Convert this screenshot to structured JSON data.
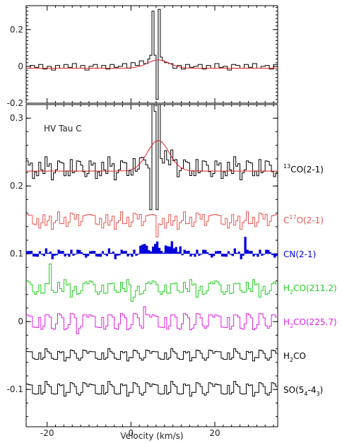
{
  "chart_data": [
    {
      "type": "line",
      "panel": "top",
      "xlim": [
        -25,
        35
      ],
      "ylim": [
        -0.2,
        0.33
      ],
      "yticks": [
        {
          "value": 0.2,
          "label": "0.2"
        },
        {
          "value": 0,
          "label": "0"
        },
        {
          "value": -0.2,
          "label": "-0.2"
        }
      ],
      "series": [
        {
          "key": "top_obs",
          "color": "#000000",
          "style": "step",
          "x": [
            -25,
            -24,
            -23,
            -22,
            -21,
            -20,
            -19,
            -18,
            -17,
            -16,
            -15,
            -14,
            -13,
            -12,
            -11,
            -10,
            -9,
            -8,
            -7,
            -6,
            -5,
            -4,
            -3,
            -2,
            -1,
            0,
            1,
            2,
            3,
            4,
            4.5,
            5,
            5.5,
            6,
            6.5,
            7,
            7.5,
            8,
            9,
            10,
            11,
            12,
            13,
            14,
            15,
            16,
            17,
            18,
            19,
            20,
            21,
            22,
            23,
            24,
            25,
            26,
            27,
            28,
            29,
            30,
            31,
            32,
            33,
            34,
            35
          ],
          "y": [
            -0.01,
            0.005,
            -0.005,
            0.01,
            -0.015,
            0.0,
            -0.02,
            0.005,
            -0.01,
            0.01,
            -0.005,
            0.015,
            -0.01,
            0.005,
            -0.02,
            0.0,
            0.01,
            -0.01,
            0.005,
            -0.015,
            0.01,
            -0.005,
            0.0,
            0.015,
            -0.01,
            0.02,
            0.005,
            0.03,
            0.015,
            0.04,
            0.06,
            0.3,
            0.06,
            -0.18,
            0.31,
            0.05,
            0.03,
            0.02,
            0.015,
            -0.01,
            0.005,
            -0.015,
            0.01,
            -0.005,
            0.0,
            0.01,
            -0.015,
            0.005,
            -0.01,
            0.015,
            -0.005,
            0.0,
            -0.02,
            0.01,
            0.005,
            -0.01,
            0.01,
            -0.005,
            0.015,
            -0.01,
            0.0,
            0.005,
            -0.015,
            0.01,
            -0.005
          ]
        },
        {
          "key": "top_fit",
          "color": "#e02020",
          "style": "gauss",
          "amp": 0.045,
          "center": 6.5,
          "sigma": 2.6,
          "offset": -0.01
        }
      ]
    },
    {
      "type": "line",
      "panel": "bottom",
      "xlim": [
        -25,
        35
      ],
      "ylim": [
        -0.155,
        0.32
      ],
      "xticks": [
        {
          "value": -20,
          "label": "-20"
        },
        {
          "value": 0,
          "label": "0"
        },
        {
          "value": 20,
          "label": "20"
        }
      ],
      "yticks": [
        {
          "value": 0.3,
          "label": "0.3"
        },
        {
          "value": 0.2,
          "label": "0.2"
        },
        {
          "value": 0.1,
          "label": "0.1"
        },
        {
          "value": 0,
          "label": "0"
        },
        {
          "value": -0.1,
          "label": "-0.1"
        }
      ],
      "xlabel": "Velocity (km/s)",
      "annotation": "HV Tau C",
      "series": [
        {
          "name": "13CO(2-1)",
          "key": "co13",
          "color": "#000000",
          "style": "step",
          "offset": 0.225,
          "special": "co13",
          "amps": [
            0.012,
            -0.008,
            0.016,
            -0.014,
            0.006,
            -0.018,
            0.01,
            0.002,
            -0.012,
            0.018,
            -0.006,
            0.014,
            -0.016,
            0.008,
            -0.002,
            0.012,
            -0.014,
            0.016,
            -0.01,
            0.004,
            -0.018,
            0.014,
            0.008,
            -0.006,
            0.012,
            -0.016,
            0.01,
            -0.004,
            0.016,
            -0.012
          ]
        },
        {
          "name": "C17O(2-1)",
          "key": "c17o",
          "color": "#e8554f",
          "style": "step",
          "offset": 0.15,
          "special": "c17o",
          "amps": [
            0.008,
            -0.01,
            0.012,
            -0.006,
            0.01,
            0.004,
            -0.012,
            0.006,
            0.014,
            -0.008,
            0.002,
            0.01,
            -0.014,
            0.006,
            -0.002,
            0.012,
            0.008,
            -0.01,
            0.004,
            0.014,
            -0.006,
            0.01,
            -0.012,
            0.002,
            0.008,
            0.012,
            -0.004,
            0.006,
            -0.01,
            0.014
          ]
        },
        {
          "name": "CN(2-1)",
          "key": "cn",
          "color": "#0000dd",
          "style": "filled",
          "offset": 0.1,
          "special": "cn",
          "amps": [
            0.004,
            -0.006,
            0.008,
            -0.004,
            0.006,
            -0.008,
            0.004,
            0.002,
            -0.006,
            0.008,
            -0.002,
            0.006,
            -0.008,
            0.004,
            -0.004,
            0.006,
            -0.006,
            0.008,
            -0.004,
            0.002,
            -0.008,
            0.006,
            0.004,
            -0.002,
            0.006,
            -0.008,
            0.004,
            -0.002,
            0.008,
            -0.006
          ]
        },
        {
          "name": "H2CO(211.2)",
          "key": "h2co211",
          "color": "#22cc22",
          "style": "step",
          "offset": 0.05,
          "special": "h2co211",
          "amps": [
            0.01,
            -0.012,
            0.008,
            -0.006,
            0.014,
            -0.01,
            0.004,
            0.012,
            -0.014,
            0.006,
            -0.008,
            0.012,
            -0.004,
            0.01,
            -0.012,
            0.008,
            0.002,
            -0.01,
            0.012,
            -0.006,
            0.01,
            -0.014,
            0.006,
            0.004,
            -0.01,
            0.012,
            -0.008,
            0.006,
            -0.012,
            0.01
          ]
        },
        {
          "name": "H2CO(225.7)",
          "key": "h2co225",
          "color": "#e01ee0",
          "style": "step",
          "offset": 0.0,
          "special": "h2co225",
          "amps": [
            0.01,
            -0.012,
            0.014,
            -0.008,
            0.012,
            -0.016,
            0.006,
            0.016,
            -0.012,
            0.01,
            -0.014,
            0.012,
            -0.01,
            0.016,
            -0.006,
            0.012,
            -0.014,
            0.01,
            -0.012,
            0.014,
            -0.008,
            0.012,
            -0.016,
            0.01,
            -0.006,
            0.014,
            -0.012,
            0.01,
            -0.014,
            0.012
          ]
        },
        {
          "name": "H2CO",
          "key": "h2co",
          "color": "#000000",
          "style": "step",
          "offset": -0.05,
          "special": "none",
          "amps": [
            0.006,
            -0.008,
            0.01,
            -0.004,
            0.008,
            -0.01,
            0.004,
            0.008,
            -0.006,
            0.01,
            -0.008,
            0.006,
            -0.004,
            0.008,
            -0.01,
            0.006,
            -0.006,
            0.01,
            -0.008,
            0.004,
            -0.006,
            0.008,
            -0.01,
            0.006,
            -0.004,
            0.01,
            -0.006,
            0.008,
            -0.01,
            0.006
          ]
        },
        {
          "name": "SO(54-43)",
          "key": "so",
          "color": "#000000",
          "style": "step",
          "offset": -0.1,
          "special": "none",
          "amps": [
            0.008,
            -0.01,
            0.012,
            -0.006,
            0.01,
            -0.012,
            0.006,
            0.01,
            -0.008,
            0.012,
            -0.01,
            0.008,
            -0.006,
            0.01,
            -0.012,
            0.008,
            -0.008,
            0.012,
            -0.01,
            0.006,
            -0.008,
            0.01,
            -0.012,
            0.008,
            -0.006,
            0.012,
            -0.008,
            0.01,
            -0.012,
            0.008
          ]
        },
        {
          "name": "13CO fit",
          "key": "co13_fit",
          "color": "#e02020",
          "style": "gauss",
          "amp": 0.045,
          "center": 6.5,
          "sigma": 2.6,
          "offset": 0.222
        }
      ]
    }
  ],
  "labels": {
    "annotation": "HV Tau C",
    "xlabel": "Velocity (km/s)",
    "lines": [
      {
        "key": "co13",
        "sup": "13",
        "pre": "",
        "main": "CO(2-1)",
        "color": "#000000"
      },
      {
        "key": "c17o",
        "pre": "C",
        "sup": "17",
        "main": "O(2-1)",
        "color": "#e8554f"
      },
      {
        "key": "cn",
        "pre": "",
        "sup": "",
        "main": "CN(2-1)",
        "color": "#0000dd"
      },
      {
        "key": "h2co211",
        "pre": "H",
        "sub": "2",
        "main": "CO(211.2)",
        "color": "#22cc22"
      },
      {
        "key": "h2co225",
        "pre": "H",
        "sub": "2",
        "main": "CO(225.7)",
        "color": "#e01ee0"
      },
      {
        "key": "h2co",
        "pre": "H",
        "sub": "2",
        "main": "CO",
        "color": "#000000"
      },
      {
        "key": "so",
        "pre": "SO(5",
        "sub": "4",
        "main": "-4",
        "sub2": "3",
        "post": ")",
        "color": "#000000"
      }
    ]
  }
}
